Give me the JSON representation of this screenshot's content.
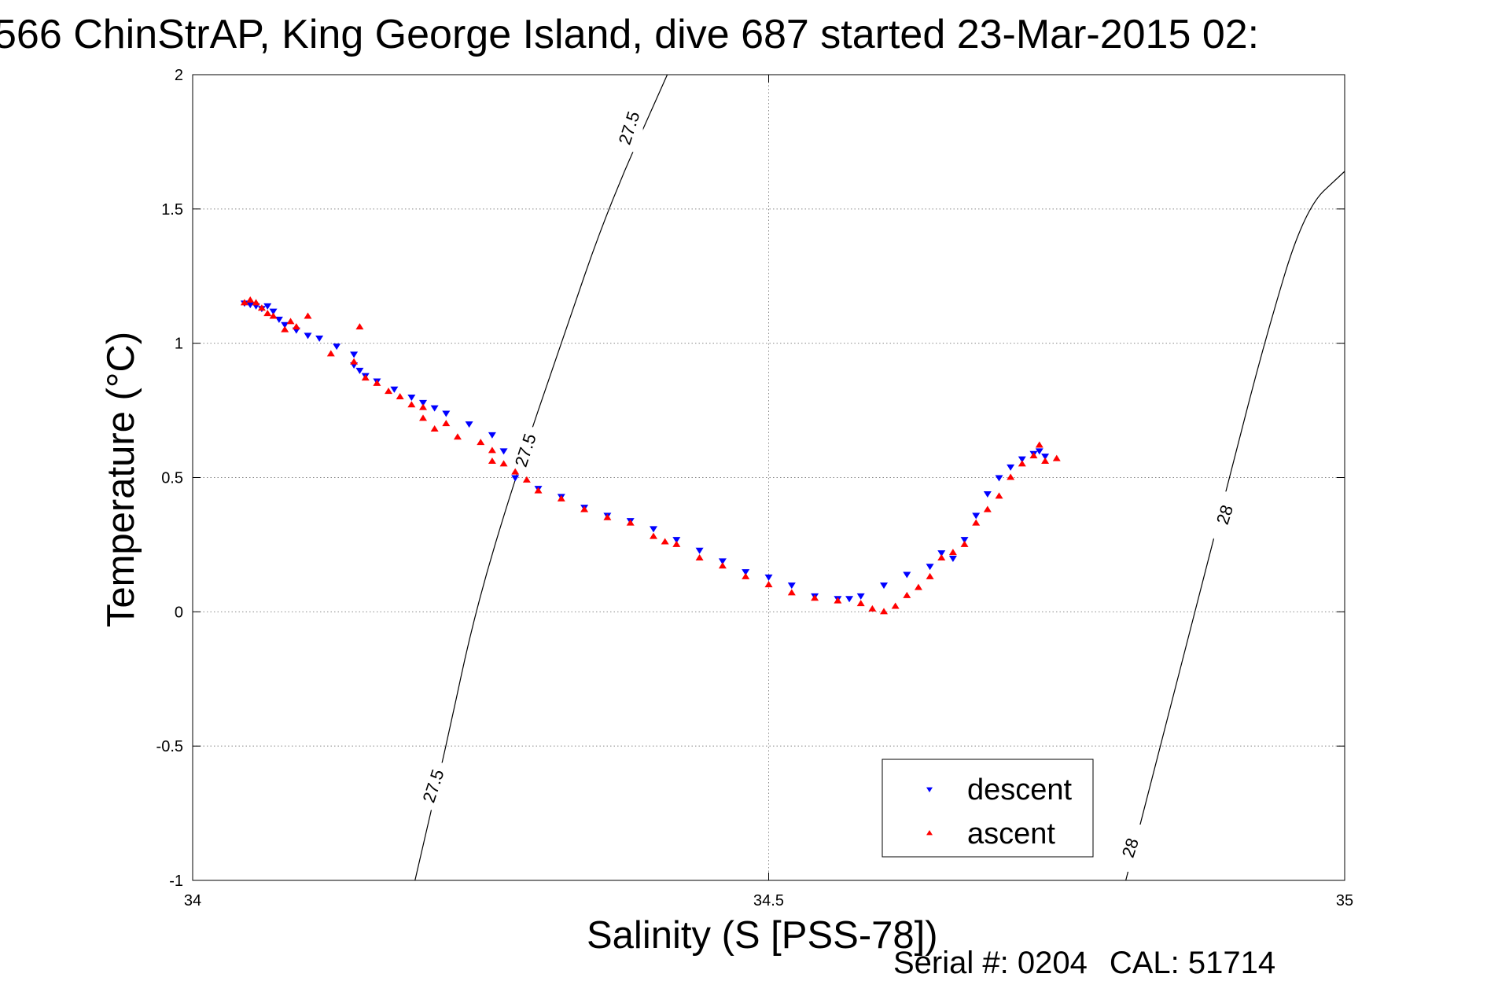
{
  "chart_data": {
    "type": "scatter",
    "title": "566 ChinStrAP, King George Island, dive 687 started 23-Mar-2015 02:",
    "xlabel": "Salinity (S [PSS-78])",
    "ylabel": "Temperature (°C)",
    "xlim": [
      34,
      35
    ],
    "ylim": [
      -1,
      2
    ],
    "x_ticks": [
      34,
      34.5,
      35
    ],
    "x_tick_labels": [
      "34",
      "34.5",
      "35"
    ],
    "y_ticks": [
      -1,
      -0.5,
      0,
      0.5,
      1,
      1.5,
      2
    ],
    "y_tick_labels": [
      "-1",
      "-0.5",
      "0",
      "0.5",
      "1",
      "1.5",
      "2"
    ],
    "grid": true,
    "legend": {
      "placement": "bottom-right"
    },
    "series": [
      {
        "name": "descent",
        "color": "#0000ff",
        "marker": "triangle-down",
        "points": [
          [
            34.045,
            1.15
          ],
          [
            34.05,
            1.145
          ],
          [
            34.055,
            1.14
          ],
          [
            34.06,
            1.13
          ],
          [
            34.065,
            1.14
          ],
          [
            34.07,
            1.12
          ],
          [
            34.075,
            1.09
          ],
          [
            34.08,
            1.07
          ],
          [
            34.09,
            1.05
          ],
          [
            34.1,
            1.03
          ],
          [
            34.11,
            1.02
          ],
          [
            34.125,
            0.99
          ],
          [
            34.14,
            0.96
          ],
          [
            34.14,
            0.92
          ],
          [
            34.145,
            0.9
          ],
          [
            34.15,
            0.88
          ],
          [
            34.16,
            0.86
          ],
          [
            34.175,
            0.83
          ],
          [
            34.19,
            0.8
          ],
          [
            34.2,
            0.78
          ],
          [
            34.21,
            0.76
          ],
          [
            34.22,
            0.74
          ],
          [
            34.24,
            0.7
          ],
          [
            34.26,
            0.66
          ],
          [
            34.27,
            0.6
          ],
          [
            34.28,
            0.5
          ],
          [
            34.3,
            0.46
          ],
          [
            34.32,
            0.43
          ],
          [
            34.34,
            0.39
          ],
          [
            34.36,
            0.36
          ],
          [
            34.38,
            0.34
          ],
          [
            34.4,
            0.31
          ],
          [
            34.42,
            0.27
          ],
          [
            34.44,
            0.23
          ],
          [
            34.46,
            0.19
          ],
          [
            34.48,
            0.15
          ],
          [
            34.5,
            0.13
          ],
          [
            34.52,
            0.1
          ],
          [
            34.54,
            0.06
          ],
          [
            34.56,
            0.05
          ],
          [
            34.57,
            0.05
          ],
          [
            34.58,
            0.06
          ],
          [
            34.6,
            0.1
          ],
          [
            34.62,
            0.14
          ],
          [
            34.64,
            0.17
          ],
          [
            34.65,
            0.22
          ],
          [
            34.66,
            0.2
          ],
          [
            34.67,
            0.27
          ],
          [
            34.68,
            0.36
          ],
          [
            34.69,
            0.44
          ],
          [
            34.7,
            0.5
          ],
          [
            34.71,
            0.54
          ],
          [
            34.72,
            0.57
          ],
          [
            34.73,
            0.59
          ],
          [
            34.735,
            0.6
          ],
          [
            34.74,
            0.58
          ]
        ]
      },
      {
        "name": "ascent",
        "color": "#ff0000",
        "marker": "triangle-up",
        "points": [
          [
            34.045,
            1.15
          ],
          [
            34.05,
            1.16
          ],
          [
            34.055,
            1.15
          ],
          [
            34.06,
            1.13
          ],
          [
            34.065,
            1.11
          ],
          [
            34.07,
            1.1
          ],
          [
            34.08,
            1.05
          ],
          [
            34.085,
            1.08
          ],
          [
            34.09,
            1.06
          ],
          [
            34.1,
            1.1
          ],
          [
            34.12,
            0.96
          ],
          [
            34.14,
            0.93
          ],
          [
            34.145,
            1.06
          ],
          [
            34.15,
            0.87
          ],
          [
            34.16,
            0.85
          ],
          [
            34.17,
            0.82
          ],
          [
            34.18,
            0.8
          ],
          [
            34.19,
            0.77
          ],
          [
            34.2,
            0.76
          ],
          [
            34.2,
            0.72
          ],
          [
            34.21,
            0.68
          ],
          [
            34.22,
            0.7
          ],
          [
            34.23,
            0.65
          ],
          [
            34.25,
            0.63
          ],
          [
            34.26,
            0.6
          ],
          [
            34.26,
            0.56
          ],
          [
            34.27,
            0.55
          ],
          [
            34.28,
            0.52
          ],
          [
            34.29,
            0.49
          ],
          [
            34.3,
            0.45
          ],
          [
            34.32,
            0.42
          ],
          [
            34.34,
            0.38
          ],
          [
            34.36,
            0.35
          ],
          [
            34.38,
            0.33
          ],
          [
            34.4,
            0.28
          ],
          [
            34.41,
            0.26
          ],
          [
            34.42,
            0.25
          ],
          [
            34.44,
            0.2
          ],
          [
            34.46,
            0.17
          ],
          [
            34.48,
            0.13
          ],
          [
            34.5,
            0.1
          ],
          [
            34.52,
            0.07
          ],
          [
            34.54,
            0.05
          ],
          [
            34.56,
            0.04
          ],
          [
            34.58,
            0.03
          ],
          [
            34.59,
            0.01
          ],
          [
            34.6,
            0.0
          ],
          [
            34.61,
            0.02
          ],
          [
            34.62,
            0.06
          ],
          [
            34.63,
            0.09
          ],
          [
            34.64,
            0.13
          ],
          [
            34.65,
            0.2
          ],
          [
            34.66,
            0.22
          ],
          [
            34.67,
            0.25
          ],
          [
            34.68,
            0.33
          ],
          [
            34.69,
            0.38
          ],
          [
            34.7,
            0.43
          ],
          [
            34.71,
            0.5
          ],
          [
            34.72,
            0.55
          ],
          [
            34.73,
            0.58
          ],
          [
            34.735,
            0.62
          ],
          [
            34.74,
            0.56
          ],
          [
            34.75,
            0.57
          ]
        ]
      }
    ],
    "contours": [
      {
        "level": "27.5",
        "points": [
          [
            34.193,
            -1.0
          ],
          [
            34.22,
            -0.5
          ],
          [
            34.245,
            0.0
          ],
          [
            34.28,
            0.5
          ],
          [
            34.32,
            1.0
          ],
          [
            34.36,
            1.5
          ],
          [
            34.412,
            2.0
          ]
        ],
        "labels": [
          {
            "text": "27.5",
            "at": [
              34.21,
              -0.65
            ]
          },
          {
            "text": "27.5",
            "at": [
              34.29,
              0.6
            ]
          },
          {
            "text": "27.5",
            "at": [
              34.38,
              1.8
            ]
          }
        ]
      },
      {
        "level": "28",
        "points": [
          [
            34.81,
            -1.0
          ],
          [
            34.84,
            -0.5
          ],
          [
            34.87,
            0.0
          ],
          [
            34.9,
            0.5
          ],
          [
            34.93,
            1.0
          ],
          [
            34.965,
            1.5
          ],
          [
            35.0,
            1.64
          ]
        ],
        "labels": [
          {
            "text": "28",
            "at": [
              34.815,
              -0.88
            ]
          },
          {
            "text": "28",
            "at": [
              34.897,
              0.36
            ]
          }
        ]
      }
    ]
  },
  "footer": {
    "serial": "Serial #: 0204",
    "cal": "CAL: 51714"
  }
}
